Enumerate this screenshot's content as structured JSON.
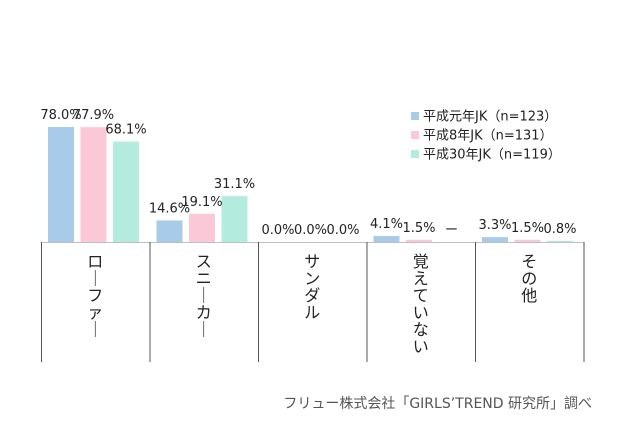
{
  "chart_data": {
    "type": "bar",
    "categories": [
      "ローファー",
      "スニーカー",
      "サンダル",
      "覚えていない",
      "その他"
    ],
    "series": [
      {
        "name": "平成元年JK（n=123）",
        "color": "#a9cbea",
        "values": [
          78.0,
          14.6,
          0.0,
          4.1,
          3.3
        ],
        "labels": [
          "78.0%",
          "14.6%",
          "0.0%",
          "4.1%",
          "3.3%"
        ]
      },
      {
        "name": "平成8年JK（n=131）",
        "color": "#fbc8d8",
        "values": [
          77.9,
          19.1,
          0.0,
          1.5,
          1.5
        ],
        "labels": [
          "77.9%",
          "19.1%",
          "0.0%",
          "1.5%",
          "1.5%"
        ]
      },
      {
        "name": "平成30年JK（n=119）",
        "color": "#b3ecdf",
        "values": [
          68.1,
          31.1,
          0.0,
          null,
          0.8
        ],
        "labels": [
          "68.1%",
          "31.1%",
          "0.0%",
          "ー",
          "0.8%"
        ]
      }
    ],
    "ylim": [
      0,
      80
    ],
    "grid": false,
    "legend": "top-right"
  },
  "source": "フリュー株式会社「GIRLS’TREND 研究所」調べ"
}
